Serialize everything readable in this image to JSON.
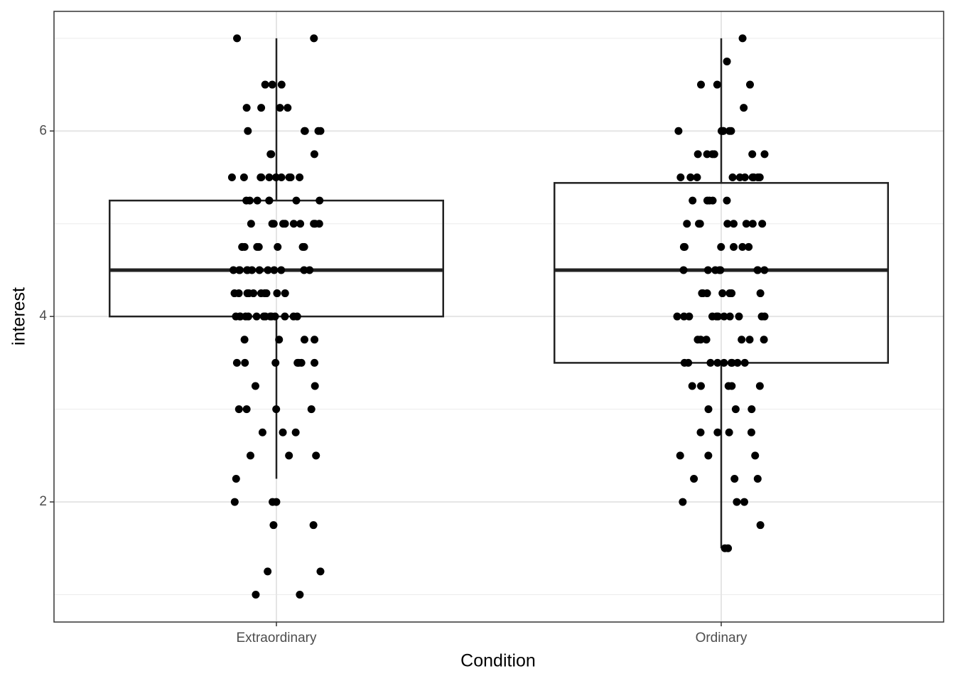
{
  "chart_data": {
    "type": "box",
    "x_label": "Condition",
    "y_label": "interest",
    "categories": [
      "Extraordinary",
      "Ordinary"
    ],
    "boxes": [
      {
        "whisker_low": 2.25,
        "q1": 4,
        "median": 4.5,
        "q3": 5.25,
        "whisker_high": 7
      },
      {
        "whisker_low": 1.5,
        "q1": 3.5,
        "median": 4.5,
        "q3": 5.44,
        "whisker_high": 7
      }
    ],
    "points": [
      [
        7,
        7,
        6.5,
        6.5,
        6.5,
        6.25,
        6.25,
        6.25,
        6.25,
        6,
        6,
        6,
        6,
        6,
        5.75,
        5.75,
        5.75,
        5.5,
        5.5,
        5.5,
        5.5,
        5.5,
        5.5,
        5.5,
        5.5,
        5.5,
        5.5,
        5.25,
        5.25,
        5.25,
        5.25,
        5.25,
        5.25,
        5.25,
        5,
        5,
        5,
        5,
        5,
        5,
        5,
        5,
        5,
        5,
        4.75,
        4.75,
        4.75,
        4.75,
        4.75,
        4.75,
        4.75,
        4.75,
        4.5,
        4.5,
        4.5,
        4.5,
        4.5,
        4.5,
        4.5,
        4.5,
        4.5,
        4.5,
        4.5,
        4.5,
        4.25,
        4.25,
        4.25,
        4.25,
        4.25,
        4.25,
        4.25,
        4.25,
        4.25,
        4.25,
        4,
        4,
        4,
        4,
        4,
        4,
        4,
        4,
        4,
        4,
        4,
        4,
        4,
        4,
        3.75,
        3.75,
        3.75,
        3.75,
        3.5,
        3.5,
        3.5,
        3.5,
        3.5,
        3.5,
        3.5,
        3.25,
        3.25,
        3,
        3,
        3,
        3,
        2.75,
        2.75,
        2.75,
        2.5,
        2.5,
        2.5,
        2.25,
        2,
        2,
        2,
        1.75,
        1.75,
        1.25,
        1.25,
        1,
        1
      ],
      [
        7,
        6.75,
        6.5,
        6.5,
        6.5,
        6.25,
        6,
        6,
        6,
        6,
        6,
        6,
        5.75,
        5.75,
        5.75,
        5.75,
        5.75,
        5.75,
        5.5,
        5.5,
        5.5,
        5.5,
        5.5,
        5.5,
        5.5,
        5.5,
        5.5,
        5.5,
        5.25,
        5.25,
        5.25,
        5.25,
        5.25,
        5,
        5,
        5,
        5,
        5,
        5,
        5,
        5,
        4.75,
        4.75,
        4.75,
        4.75,
        4.75,
        4.75,
        4.5,
        4.5,
        4.5,
        4.5,
        4.5,
        4.5,
        4.5,
        4.5,
        4.25,
        4.25,
        4.25,
        4.25,
        4.25,
        4.25,
        4.25,
        4,
        4,
        4,
        4,
        4,
        4,
        4,
        4,
        4,
        4,
        4,
        3.75,
        3.75,
        3.75,
        3.75,
        3.75,
        3.75,
        3.5,
        3.5,
        3.5,
        3.5,
        3.5,
        3.5,
        3.5,
        3.5,
        3.5,
        3.25,
        3.25,
        3.25,
        3.25,
        3.25,
        3,
        3,
        3,
        2.75,
        2.75,
        2.75,
        2.75,
        2.5,
        2.5,
        2.5,
        2.25,
        2.25,
        2.25,
        2,
        2,
        2,
        1.75,
        1.5,
        1.5
      ]
    ],
    "ylim": [
      0.705,
      7.29
    ],
    "yticks": [
      2,
      4,
      6
    ],
    "minor_yticks": [
      1,
      3,
      5,
      7
    ],
    "grid": true,
    "point_color": "#000000",
    "box_color": "#222222"
  }
}
